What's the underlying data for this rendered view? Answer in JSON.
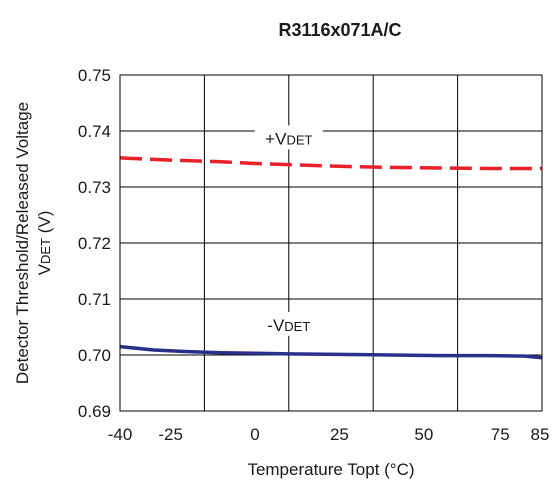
{
  "chart_data": {
    "type": "line",
    "title": "R3116x071A/C",
    "xlabel": "Temperature Topt (°C)",
    "ylabel_line1": "Detector Threshold/Released Voltage",
    "ylabel_line2_main": "V",
    "ylabel_line2_sub": "DET",
    "ylabel_line2_unit": " (V)",
    "xlim": [
      -40,
      85
    ],
    "ylim": [
      0.69,
      0.75
    ],
    "x_ticks": [
      -40,
      -25,
      0,
      25,
      50,
      75,
      85
    ],
    "x_tick_labels": [
      "-40",
      "-25",
      "0",
      "25",
      "50",
      "75",
      "85"
    ],
    "x_grid": [
      -40,
      -15,
      10,
      35,
      60,
      85
    ],
    "y_ticks": [
      0.69,
      0.7,
      0.71,
      0.72,
      0.73,
      0.74,
      0.75
    ],
    "y_tick_labels": [
      "0.69",
      "0.70",
      "0.71",
      "0.72",
      "0.73",
      "0.74",
      "0.75"
    ],
    "grid": true,
    "series": [
      {
        "name_prefix": "+V",
        "name_sub": "DET",
        "color": "#e8202a",
        "dashed": true,
        "label_x": 10,
        "label_y": 0.7385,
        "x": [
          -40,
          -25,
          -10,
          0,
          10,
          25,
          40,
          55,
          70,
          85
        ],
        "values": [
          0.7352,
          0.7348,
          0.7345,
          0.7342,
          0.734,
          0.7337,
          0.7335,
          0.7334,
          0.7333,
          0.7333
        ]
      },
      {
        "name_prefix": "-V",
        "name_sub": "DET",
        "color": "#2b2f8c",
        "dashed": false,
        "label_x": 10,
        "label_y": 0.7052,
        "x": [
          -40,
          -30,
          -20,
          -10,
          0,
          10,
          25,
          40,
          55,
          70,
          80,
          85
        ],
        "values": [
          0.7015,
          0.7009,
          0.7006,
          0.7004,
          0.7003,
          0.7002,
          0.7001,
          0.7,
          0.6999,
          0.6999,
          0.6998,
          0.6995
        ]
      }
    ]
  }
}
